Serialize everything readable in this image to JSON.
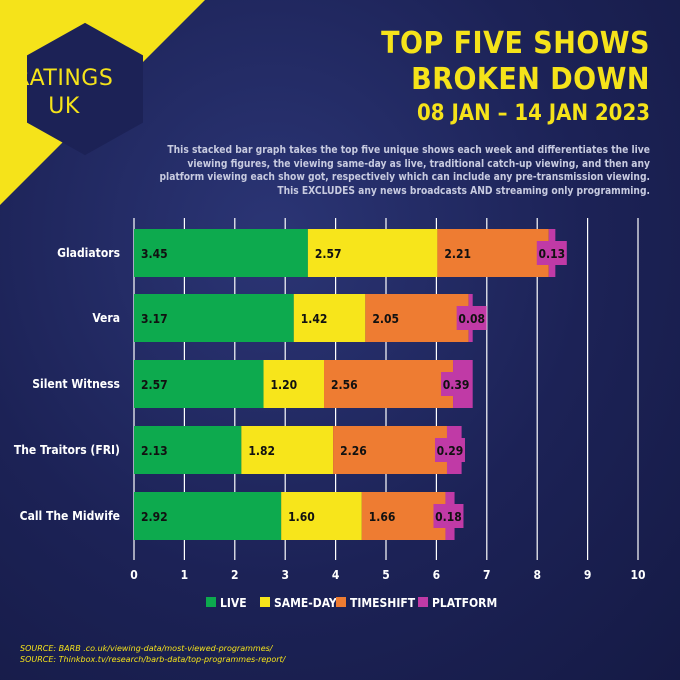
{
  "logo": {
    "line1": "RATINGS",
    "line2": "UK"
  },
  "header": {
    "title_line1": "TOP FIVE SHOWS",
    "title_line2": "BROKEN DOWN",
    "date_range": "08 JAN – 14 JAN 2023",
    "description": "This stacked bar graph takes the top five unique shows each week and differentiates the live viewing figures, the viewing same-day as live, traditional catch-up viewing, and then any platform viewing each show got, respectively which can include any pre-transmission viewing. This EXCLUDES any news broadcasts AND streaming only programming."
  },
  "colors": {
    "live": "#0daa4e",
    "same_day": "#f7e51b",
    "timeshift": "#ee7c32",
    "platform": "#c03aa6",
    "accent": "#f5e31a",
    "grid": "#ffffff"
  },
  "chart_data": {
    "type": "bar",
    "orientation": "horizontal",
    "stacked": true,
    "categories": [
      "Gladiators",
      "Vera",
      "Silent Witness",
      "The Traitors (FRI)",
      "Call The Midwife"
    ],
    "series": [
      {
        "name": "LIVE",
        "values": [
          3.45,
          3.17,
          2.57,
          2.13,
          2.92
        ]
      },
      {
        "name": "SAME-DAY",
        "values": [
          2.57,
          1.42,
          1.2,
          1.82,
          1.6
        ]
      },
      {
        "name": "TIMESHIFT",
        "values": [
          2.21,
          2.05,
          2.56,
          2.26,
          1.66
        ]
      },
      {
        "name": "PLATFORM",
        "values": [
          0.13,
          0.08,
          0.39,
          0.29,
          0.18
        ]
      }
    ],
    "value_labels": [
      [
        "3.45",
        "2.57",
        "2.21",
        "0.13"
      ],
      [
        "3.17",
        "1.42",
        "2.05",
        "0.08"
      ],
      [
        "2.57",
        "1.20",
        "2.56",
        "0.39"
      ],
      [
        "2.13",
        "1.82",
        "2.26",
        "0.29"
      ],
      [
        "2.92",
        "1.60",
        "1.66",
        "0.18"
      ]
    ],
    "xlim": [
      0,
      10
    ],
    "x_ticks": [
      "0",
      "1",
      "2",
      "3",
      "4",
      "5",
      "6",
      "7",
      "8",
      "9",
      "10"
    ],
    "grid": true,
    "legend_position": "bottom"
  },
  "sources": {
    "line1": "SOURCE: BARB .co.uk/viewing-data/most-viewed-programmes/",
    "line2": "SOURCE: Thinkbox.tv/research/barb-data/top-programmes-report/"
  }
}
